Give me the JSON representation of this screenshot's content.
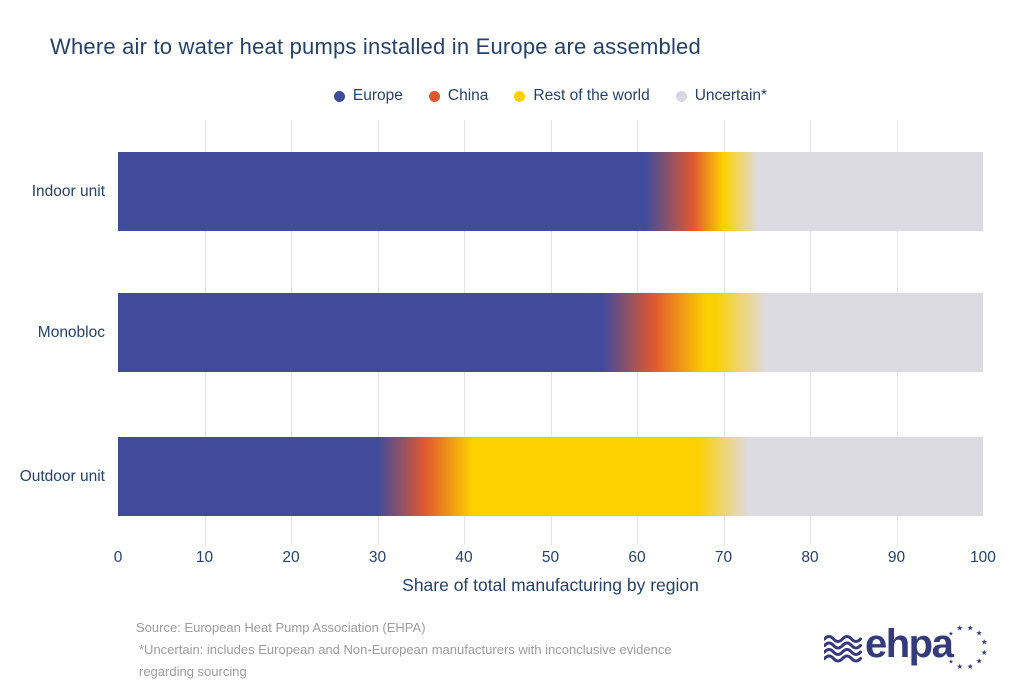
{
  "title": "Where air to water heat pumps installed in Europe are assembled",
  "legend": [
    {
      "label": "Europe",
      "color": "#414b9b"
    },
    {
      "label": "China",
      "color": "#e0582f"
    },
    {
      "label": "Rest of the world",
      "color": "#fdd100"
    },
    {
      "label": "Uncertain*",
      "color": "#d9d7df"
    }
  ],
  "chart_data": {
    "type": "bar",
    "orientation": "horizontal",
    "stacked": true,
    "title": "Where air to water heat pumps installed in Europe are assembled",
    "categories": [
      "Indoor unit",
      "Monobloc",
      "Outdoor unit"
    ],
    "series": [
      {
        "name": "Europe",
        "color": "#414b9b",
        "values": [
          64,
          59,
          33
        ]
      },
      {
        "name": "China",
        "color": "#e0582f",
        "values": [
          5,
          6,
          5
        ]
      },
      {
        "name": "Rest of the world",
        "color": "#fdd100",
        "values": [
          2,
          7,
          32
        ]
      },
      {
        "name": "Uncertain*",
        "color": "#dcdae3",
        "values": [
          29,
          28,
          30
        ]
      }
    ],
    "xlabel": "Share of total manufacturing by region",
    "xlim": [
      0,
      100
    ],
    "xticks": [
      0,
      10,
      20,
      30,
      40,
      50,
      60,
      70,
      80,
      90,
      100
    ],
    "grid": true,
    "gridline_color": "#e4e4e4",
    "legend_position": "top",
    "style_note": "stacked segments blend into each other with soft gradient transitions"
  },
  "footer": {
    "source_line1": "Source: European Heat Pump Association (EHPA)",
    "source_line2": "*Uncertain: includes European and Non-European manufacturers with inconclusive evidence",
    "source_line3": "regarding sourcing"
  },
  "logo": {
    "text": "ehpa",
    "color": "#343a7b"
  }
}
